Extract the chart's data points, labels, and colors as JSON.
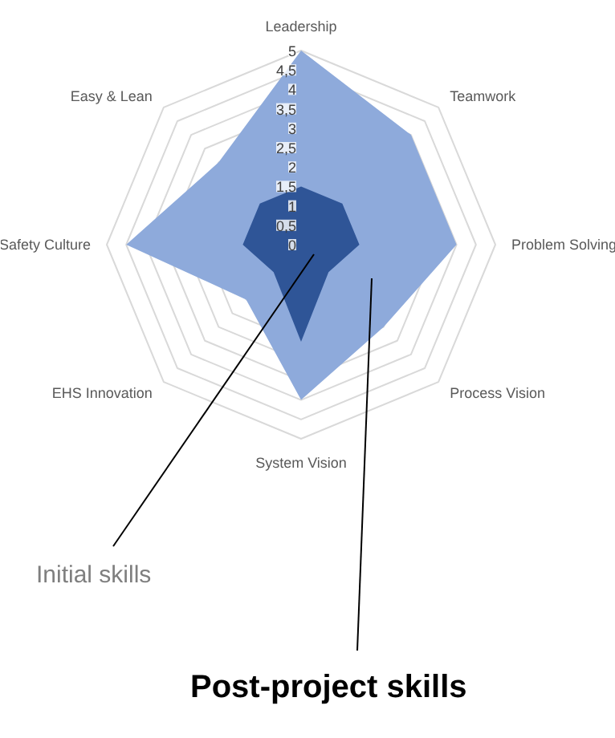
{
  "chart_data": {
    "type": "radar",
    "categories": [
      "Leadership",
      "Teamwork",
      "Problem Solving",
      "Process Vision",
      "System Vision",
      "EHS Innovation",
      "Safety Culture",
      "Easy & Lean"
    ],
    "series": [
      {
        "color": "#8eaadb",
        "values": [
          5,
          4,
          4,
          3,
          4,
          2,
          4.5,
          3
        ]
      },
      {
        "color": "#2f5597",
        "values": [
          1.5,
          1.5,
          1.5,
          1,
          2.5,
          1,
          1.5,
          1.5
        ]
      }
    ],
    "ylim": [
      0,
      5
    ],
    "yticks": [
      0,
      {
        "value": 0.5,
        "label": "0,5"
      },
      1,
      {
        "value": 1.5,
        "label": "1,5"
      },
      2,
      {
        "value": 2.5,
        "label": "2,5"
      },
      3,
      {
        "value": 3.5,
        "label": "3,5"
      },
      4,
      {
        "value": 4.5,
        "label": "4,5"
      },
      5
    ],
    "grid": true,
    "annotations": [
      "Initial skills",
      "Post-project skills"
    ]
  }
}
